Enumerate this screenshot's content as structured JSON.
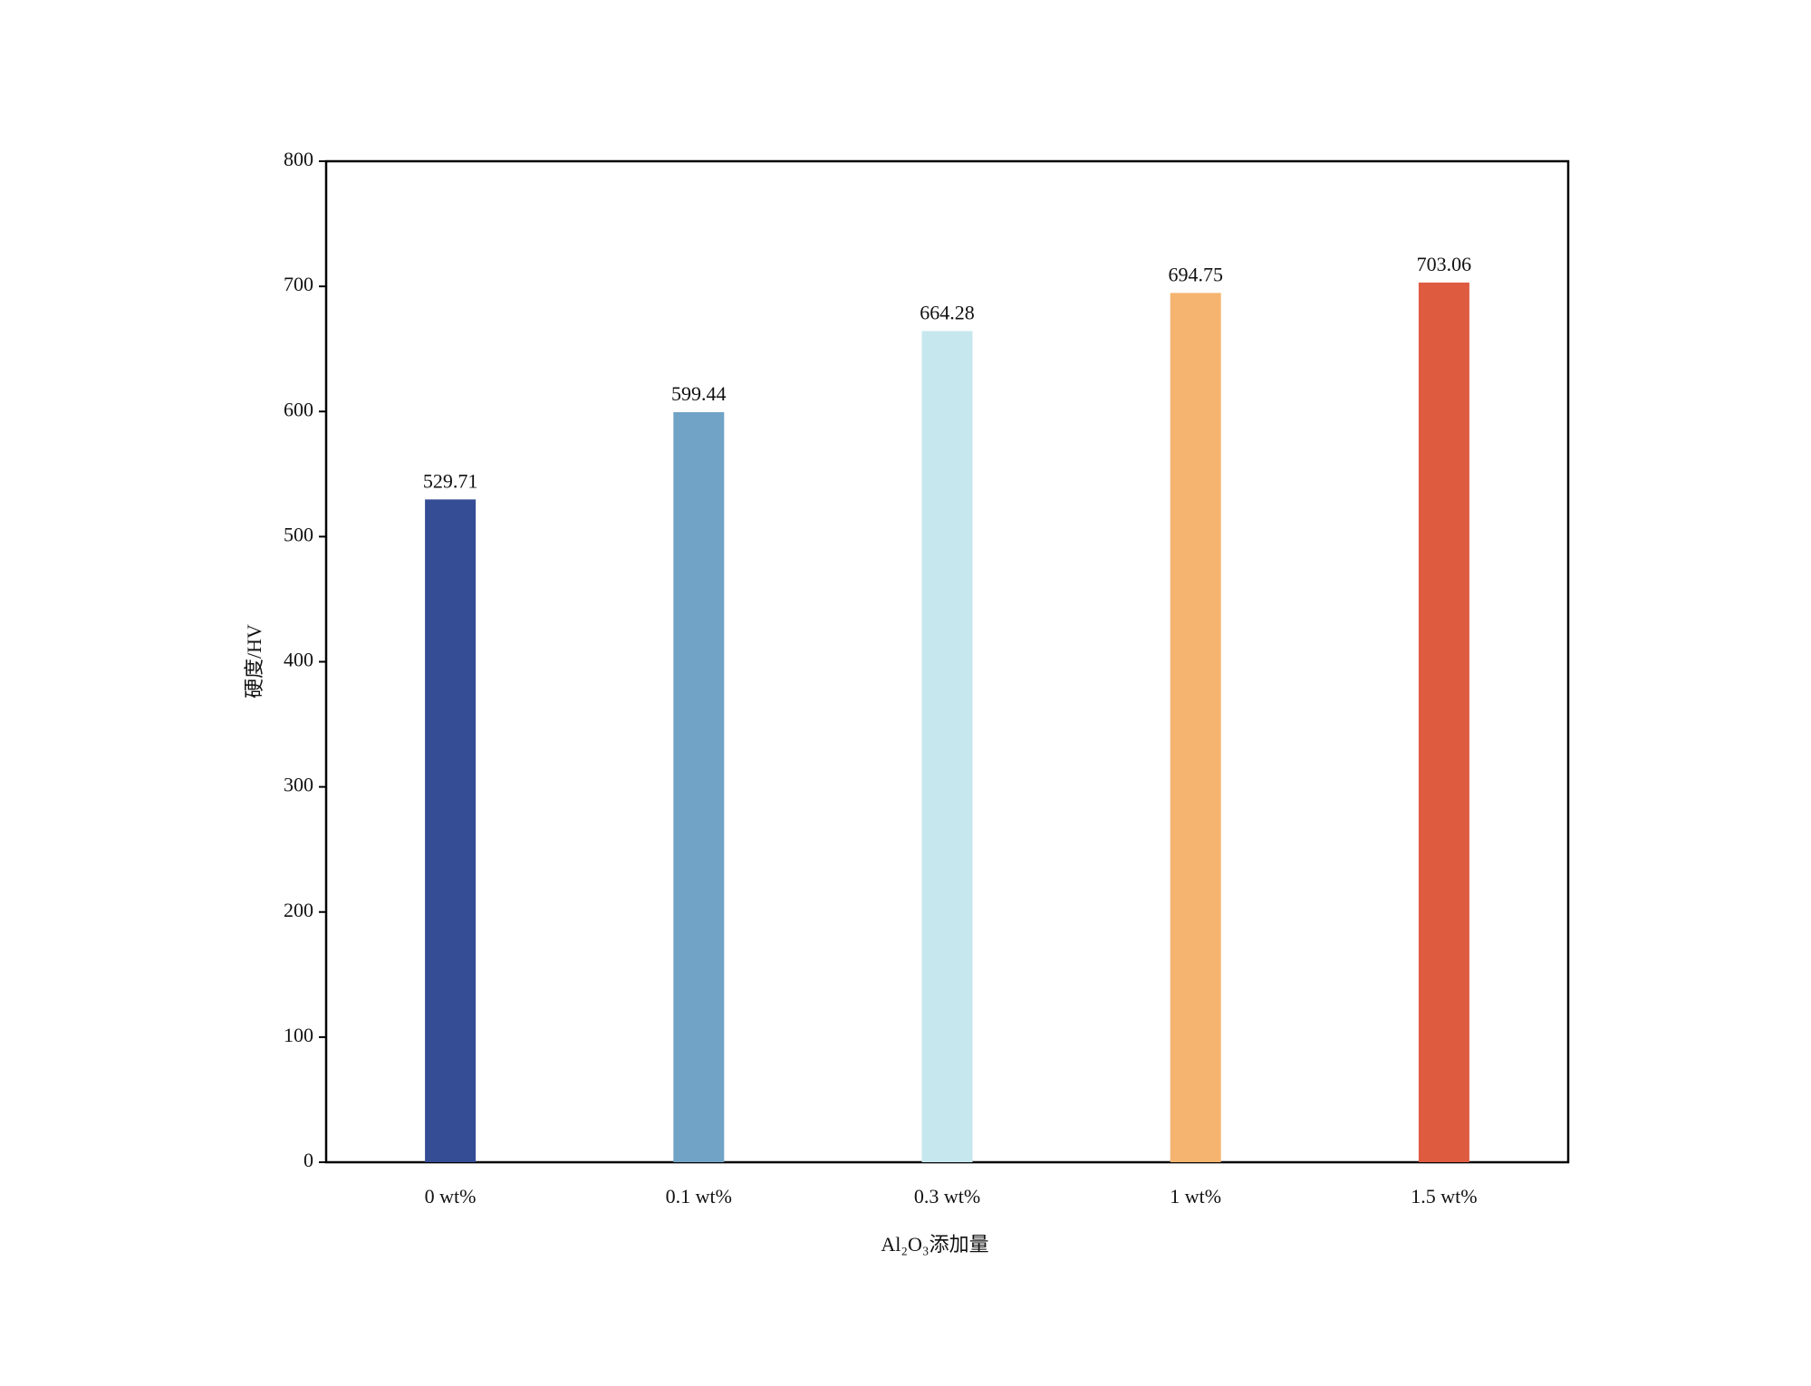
{
  "chart_data": {
    "type": "bar",
    "xlabel": "Al₂O₃添加量",
    "ylabel": "硬度/HV",
    "categories": [
      "0 wt%",
      "0.1 wt%",
      "0.3 wt%",
      "1 wt%",
      "1.5 wt%"
    ],
    "values": [
      529.71,
      599.44,
      664.28,
      694.75,
      703.06
    ],
    "colors": [
      "#354d95",
      "#71a3c6",
      "#c7e7ee",
      "#f5b46f",
      "#de5b40"
    ],
    "ylim": [
      0,
      800
    ],
    "yticks": [
      0,
      100,
      200,
      300,
      400,
      500,
      600,
      700,
      800
    ],
    "grid": false
  }
}
